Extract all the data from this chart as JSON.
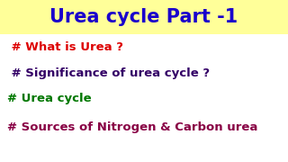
{
  "title": "Urea cycle Part -1",
  "title_color": "#1a00cc",
  "title_bg_color": "#ffff99",
  "title_fontsize": 15,
  "background_color": "#ffffff",
  "lines": [
    {
      "text": " # What is Urea ?",
      "color": "#dd0000",
      "fontsize": 9.5
    },
    {
      "text": " # Significance of urea cycle ?",
      "color": "#330066",
      "fontsize": 9.5
    },
    {
      "text": "# Urea cycle",
      "color": "#007700",
      "fontsize": 9.5
    },
    {
      "text": "# Sources of Nitrogen & Carbon urea",
      "color": "#880044",
      "fontsize": 9.5
    }
  ],
  "fig_width": 3.2,
  "fig_height": 1.8,
  "dpi": 100
}
